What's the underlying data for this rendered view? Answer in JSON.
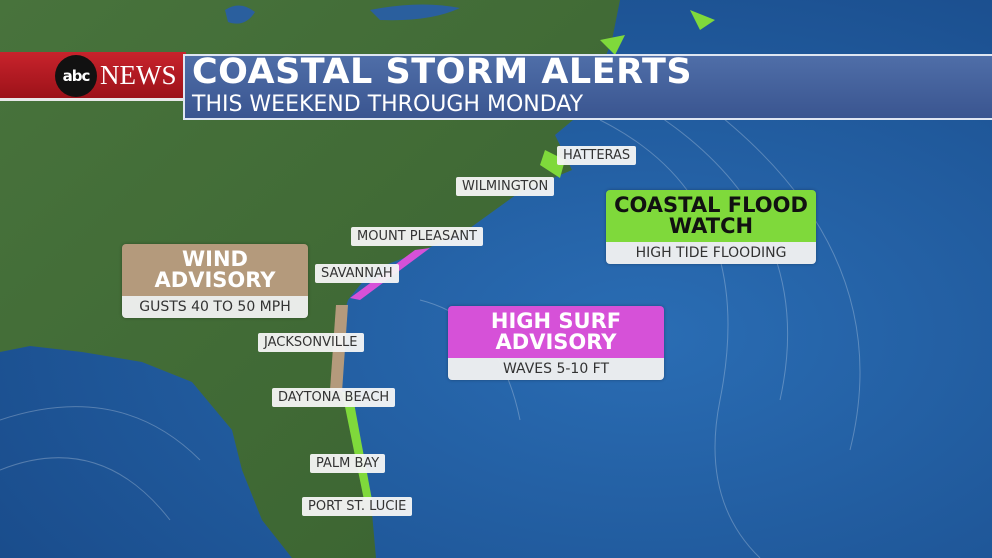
{
  "header": {
    "logo_text": "abc",
    "brand": "NEWS",
    "title": "COASTAL STORM ALERTS",
    "subtitle": "THIS WEEKEND THROUGH MONDAY"
  },
  "colors": {
    "wind": "#b49a7c",
    "flood": "#7fd93b",
    "surf": "#d651d8",
    "ocean": "#1f5a9e",
    "land": "#3f6a34"
  },
  "cities": [
    "HATTERAS",
    "WILMINGTON",
    "MOUNT PLEASANT",
    "SAVANNAH",
    "JACKSONVILLE",
    "DAYTONA BEACH",
    "PALM BAY",
    "PORT ST. LUCIE"
  ],
  "alerts": [
    {
      "title": "WIND ADVISORY",
      "detail": "GUSTS 40 TO 50 MPH"
    },
    {
      "title": "COASTAL FLOOD WATCH",
      "detail": "HIGH TIDE FLOODING"
    },
    {
      "title": "HIGH SURF ADVISORY",
      "detail": "WAVES 5-10 FT"
    }
  ]
}
